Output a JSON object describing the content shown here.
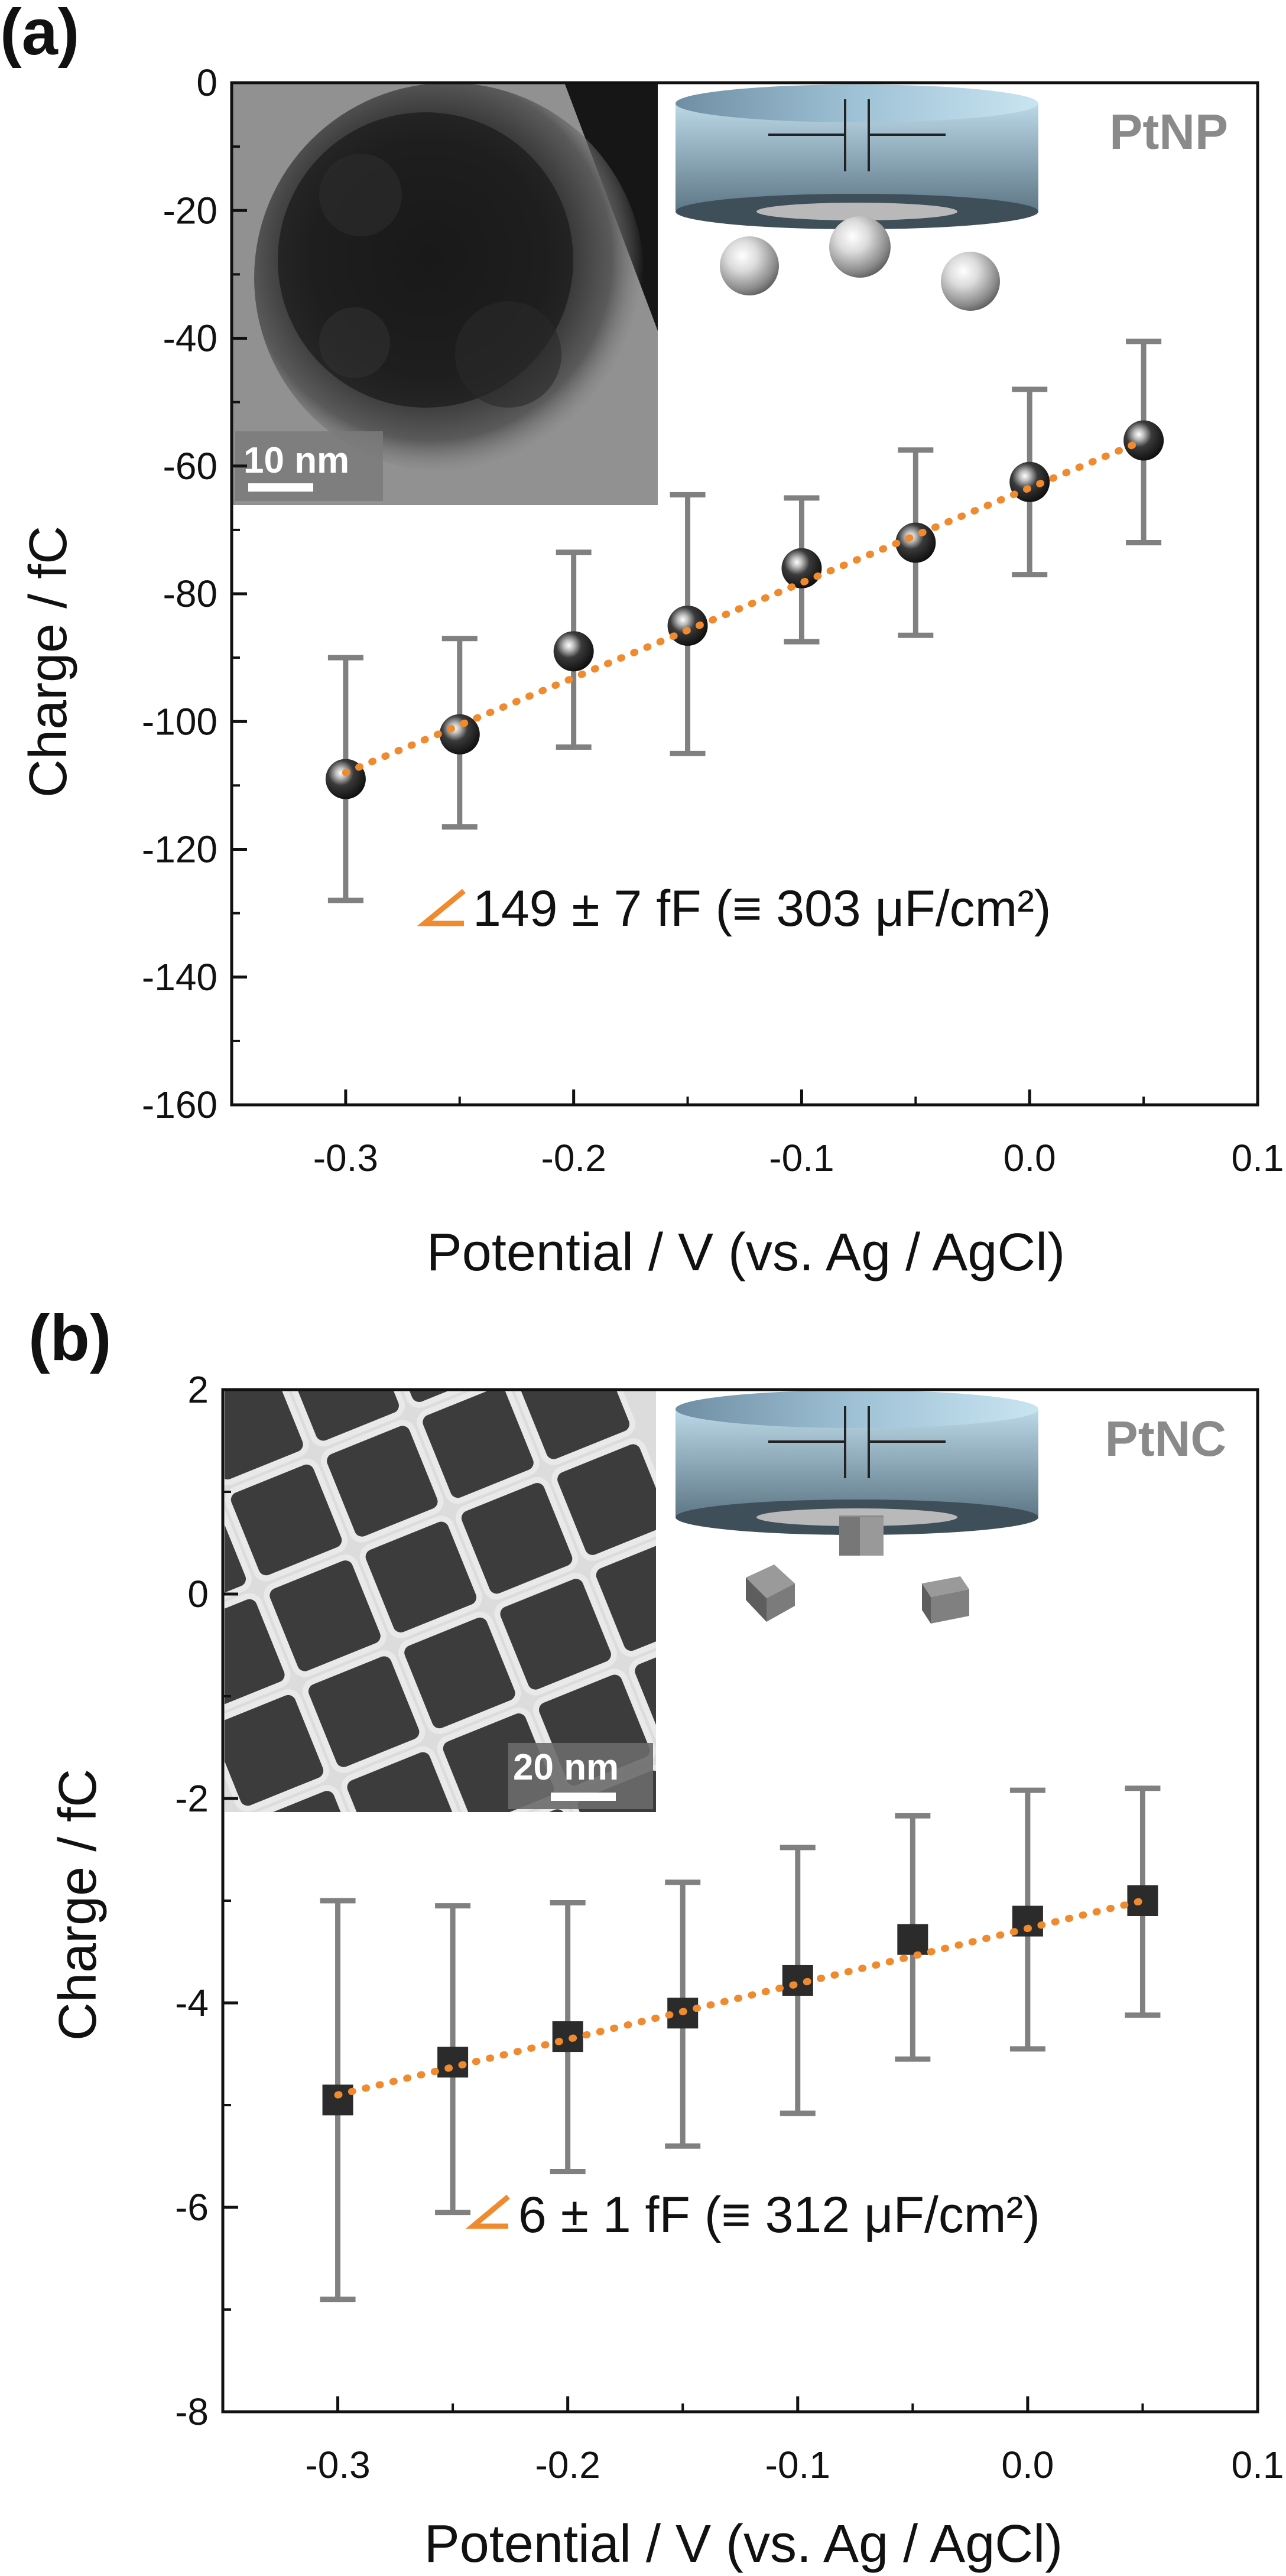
{
  "chart_data": [
    {
      "type": "scatter",
      "panel_label": "(a)",
      "tag": "PtNP",
      "xlabel": "Potential / V (vs. Ag / AgCl)",
      "ylabel": "Charge / fC",
      "xlim": [
        -0.35,
        0.1
      ],
      "ylim": [
        -160,
        0
      ],
      "xticks": [
        -0.3,
        -0.2,
        -0.1,
        0.0,
        0.1
      ],
      "xtick_labels": [
        "-0.3",
        "-0.2",
        "-0.1",
        "0.0",
        "0.1"
      ],
      "yticks": [
        0,
        -20,
        -40,
        -60,
        -80,
        -100,
        -120,
        -140,
        -160
      ],
      "ytick_labels": [
        "0",
        "-20",
        "-40",
        "-60",
        "-80",
        "-100",
        "-120",
        "-140",
        "-160"
      ],
      "grid": false,
      "marker": "sphere",
      "x": [
        -0.3,
        -0.25,
        -0.2,
        -0.15,
        -0.1,
        -0.05,
        0.0,
        0.05
      ],
      "y": [
        -109,
        -102,
        -89,
        -85,
        -76,
        -72,
        -62.5,
        -56
      ],
      "err_low": [
        -128,
        -116.5,
        -104,
        -105,
        -87.5,
        -86.5,
        -77,
        -72
      ],
      "err_high": [
        -90,
        -87,
        -73.5,
        -64.5,
        -65,
        -57.5,
        -48,
        -40.5
      ],
      "fit": {
        "x": [
          -0.3,
          0.05
        ],
        "y": [
          -108,
          -56
        ]
      },
      "annotation": "149 ± 7 fF (≡ 303 μF/cm²)",
      "scale_bar": "10 nm"
    },
    {
      "type": "scatter",
      "panel_label": "(b)",
      "tag": "PtNC",
      "xlabel": "Potential / V (vs. Ag / AgCl)",
      "ylabel": "Charge / fC",
      "xlim": [
        -0.35,
        0.1
      ],
      "ylim": [
        -8,
        2
      ],
      "xticks": [
        -0.3,
        -0.2,
        -0.1,
        0.0,
        0.1
      ],
      "xtick_labels": [
        "-0.3",
        "-0.2",
        "-0.1",
        "0.0",
        "0.1"
      ],
      "yticks": [
        2,
        0,
        -2,
        -4,
        -6,
        -8
      ],
      "ytick_labels": [
        "2",
        "0",
        "-2",
        "-4",
        "-6",
        "-8"
      ],
      "grid": false,
      "marker": "square",
      "x": [
        -0.3,
        -0.25,
        -0.2,
        -0.15,
        -0.1,
        -0.05,
        0.0,
        0.05
      ],
      "y": [
        -4.95,
        -4.58,
        -4.33,
        -4.1,
        -3.78,
        -3.38,
        -3.2,
        -3.0
      ],
      "err_low": [
        -6.9,
        -6.05,
        -5.65,
        -5.4,
        -5.08,
        -4.55,
        -4.45,
        -4.12
      ],
      "err_high": [
        -3.0,
        -3.05,
        -3.02,
        -2.82,
        -2.48,
        -2.17,
        -1.92,
        -1.9
      ],
      "fit": {
        "x": [
          -0.3,
          0.05
        ],
        "y": [
          -4.9,
          -3.0
        ]
      },
      "annotation": "6 ± 1 fF (≡ 312 μF/cm²)",
      "scale_bar": "20 nm"
    }
  ],
  "colors": {
    "fit_line": "#f08a2e",
    "error_bar": "#808080",
    "marker": "#2b2b2b",
    "axis": "#111111",
    "tag": "#8a8a8a"
  }
}
